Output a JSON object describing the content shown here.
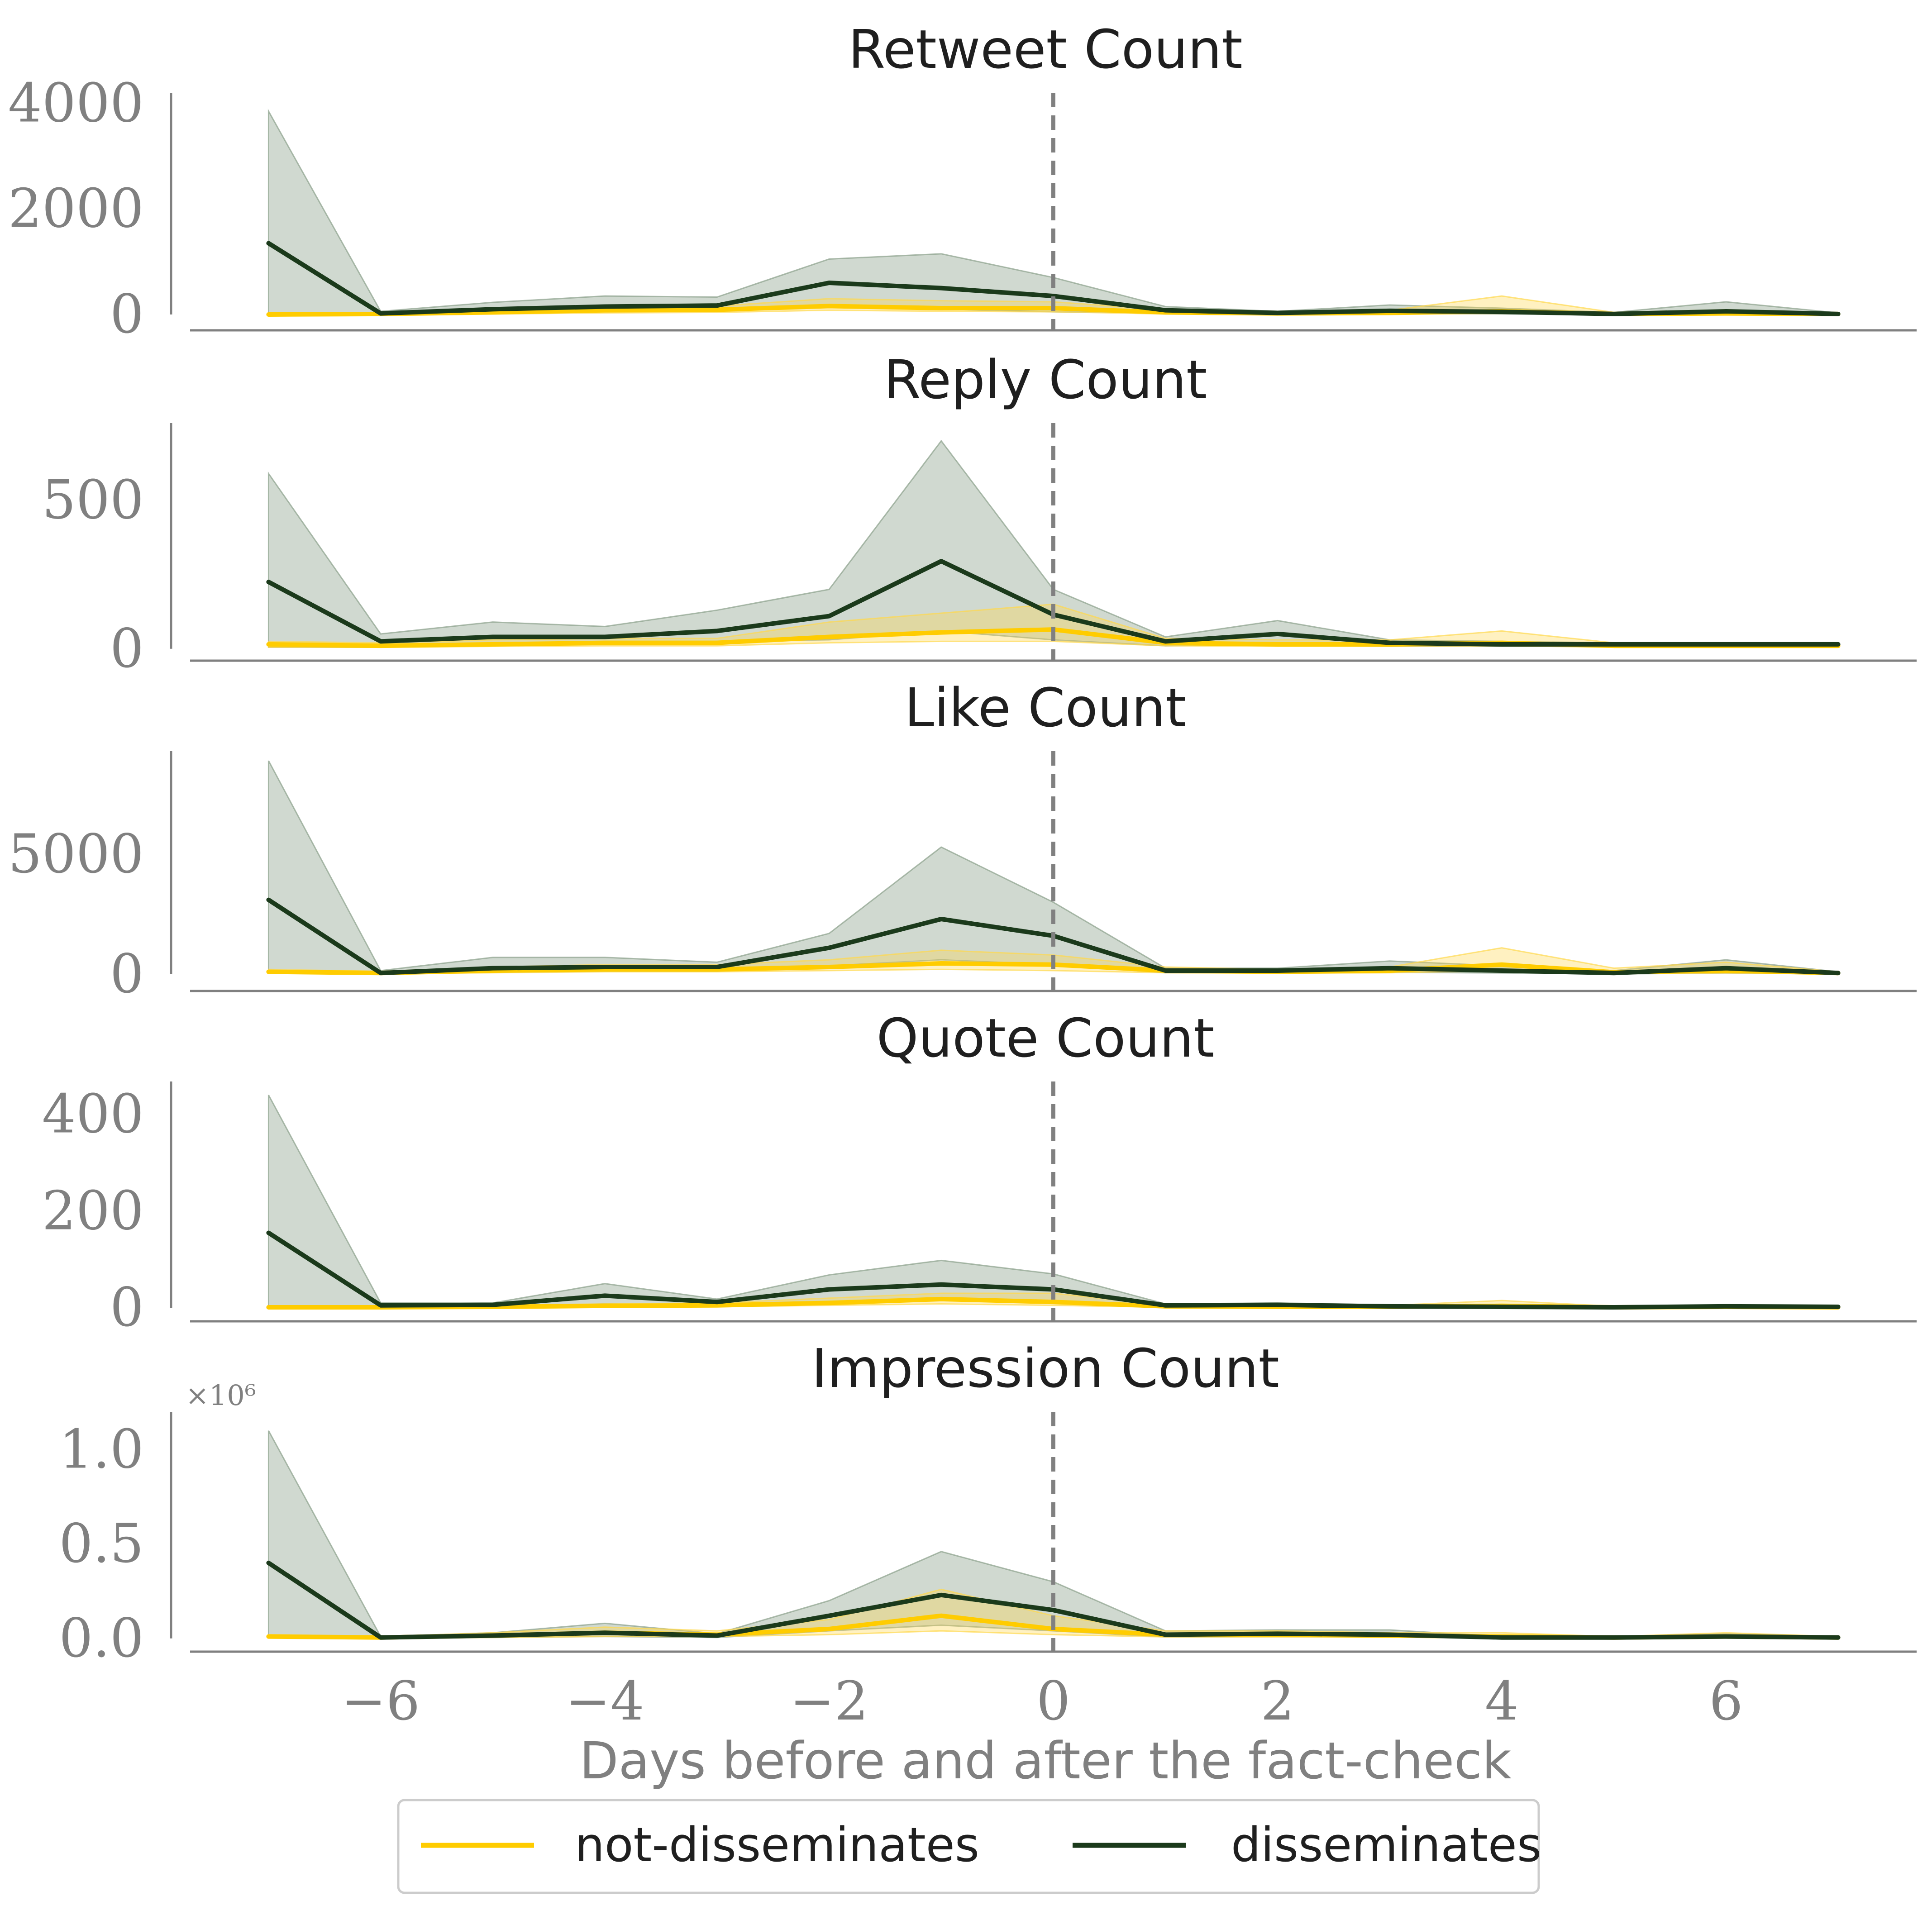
{
  "colors": {
    "not_disseminates": "#ffcc00",
    "disseminates": "#1b3a1b",
    "disseminates_band": "#8a9f8a",
    "not_disseminates_band": "#ffd84d",
    "axis": "#808080",
    "reference_line": "#808080"
  },
  "legend": {
    "items": [
      "not-disseminates",
      "disseminates"
    ],
    "placement": "bottom-center"
  },
  "chart_data": [
    {
      "type": "line",
      "title": "Retweet Count",
      "xlabel": "",
      "ylabel": "",
      "ylim": [
        -300,
        4200
      ],
      "yticks": [
        0,
        2000,
        4000
      ],
      "ytick_labels": [
        "0",
        "2000",
        "4000"
      ],
      "exponent_label": "",
      "x": [
        -7,
        -6,
        -5,
        -4,
        -3,
        -2,
        -1,
        0,
        1,
        2,
        3,
        4,
        5,
        6,
        7
      ],
      "series": [
        {
          "name": "not-disseminates",
          "values": [
            0,
            10,
            40,
            80,
            90,
            160,
            120,
            120,
            40,
            20,
            30,
            60,
            10,
            20,
            10
          ],
          "band_low": [
            0,
            0,
            10,
            30,
            40,
            80,
            60,
            50,
            10,
            5,
            10,
            20,
            0,
            5,
            0
          ],
          "band_high": [
            30,
            40,
            90,
            150,
            160,
            300,
            260,
            240,
            90,
            60,
            80,
            350,
            40,
            90,
            30
          ]
        },
        {
          "name": "disseminates",
          "values": [
            1350,
            20,
            100,
            150,
            170,
            600,
            500,
            350,
            80,
            30,
            70,
            50,
            10,
            60,
            10
          ],
          "band_low": [
            0,
            0,
            30,
            70,
            80,
            150,
            100,
            50,
            30,
            10,
            20,
            10,
            0,
            10,
            0
          ],
          "band_high": [
            3850,
            60,
            230,
            350,
            330,
            1050,
            1150,
            700,
            150,
            60,
            180,
            120,
            40,
            240,
            30
          ]
        }
      ]
    },
    {
      "type": "line",
      "title": "Reply Count",
      "xlabel": "",
      "ylabel": "",
      "ylim": [
        -40,
        760
      ],
      "yticks": [
        0,
        500
      ],
      "ytick_labels": [
        "0",
        "500"
      ],
      "exponent_label": "",
      "x": [
        -7,
        -6,
        -5,
        -4,
        -3,
        -2,
        -1,
        0,
        1,
        2,
        3,
        4,
        5,
        6,
        7
      ],
      "series": [
        {
          "name": "not-disseminates",
          "values": [
            15,
            10,
            15,
            20,
            20,
            40,
            55,
            65,
            20,
            15,
            15,
            20,
            10,
            10,
            10
          ],
          "band_low": [
            5,
            5,
            8,
            10,
            10,
            20,
            25,
            25,
            10,
            8,
            8,
            10,
            5,
            5,
            5
          ],
          "band_high": [
            25,
            20,
            30,
            35,
            35,
            90,
            120,
            150,
            35,
            30,
            30,
            60,
            20,
            20,
            18
          ]
        },
        {
          "name": "disseminates",
          "values": [
            225,
            25,
            40,
            40,
            60,
            110,
            295,
            115,
            25,
            50,
            20,
            15,
            15,
            15,
            15
          ],
          "band_low": [
            5,
            5,
            15,
            15,
            25,
            30,
            60,
            30,
            10,
            15,
            8,
            8,
            8,
            8,
            8
          ],
          "band_high": [
            590,
            50,
            90,
            75,
            130,
            200,
            700,
            200,
            40,
            95,
            30,
            25,
            20,
            20,
            20
          ]
        }
      ]
    },
    {
      "type": "line",
      "title": "Like Count",
      "xlabel": "",
      "ylabel": "",
      "ylim": [
        -700,
        9300
      ],
      "yticks": [
        0,
        5000
      ],
      "ytick_labels": [
        "0",
        "5000"
      ],
      "exponent_label": "",
      "x": [
        -7,
        -6,
        -5,
        -4,
        -3,
        -2,
        -1,
        0,
        1,
        2,
        3,
        4,
        5,
        6,
        7
      ],
      "series": [
        {
          "name": "not-disseminates",
          "values": [
            100,
            50,
            150,
            200,
            200,
            300,
            450,
            400,
            150,
            100,
            150,
            400,
            80,
            150,
            50
          ],
          "band_low": [
            30,
            20,
            60,
            100,
            100,
            150,
            200,
            150,
            60,
            40,
            60,
            150,
            20,
            50,
            20
          ],
          "band_high": [
            200,
            120,
            300,
            400,
            400,
            600,
            1000,
            800,
            300,
            200,
            300,
            1100,
            250,
            500,
            100
          ]
        },
        {
          "name": "disseminates",
          "values": [
            3100,
            50,
            250,
            300,
            300,
            1100,
            2300,
            1600,
            150,
            150,
            250,
            150,
            50,
            250,
            50
          ],
          "band_low": [
            50,
            10,
            80,
            120,
            120,
            350,
            600,
            400,
            60,
            50,
            80,
            50,
            10,
            50,
            10
          ],
          "band_high": [
            8900,
            150,
            700,
            700,
            500,
            1700,
            5300,
            3000,
            250,
            250,
            550,
            350,
            150,
            600,
            100
          ]
        }
      ]
    },
    {
      "type": "line",
      "title": "Quote Count",
      "xlabel": "",
      "ylabel": "",
      "ylim": [
        -28,
        468
      ],
      "yticks": [
        0,
        200,
        400
      ],
      "ytick_labels": [
        "0",
        "200",
        "400"
      ],
      "exponent_label": "",
      "x": [
        -7,
        -6,
        -5,
        -4,
        -3,
        -2,
        -1,
        0,
        1,
        2,
        3,
        4,
        5,
        6,
        7
      ],
      "series": [
        {
          "name": "not-disseminates",
          "values": [
            1,
            1,
            2,
            4,
            5,
            10,
            18,
            12,
            3,
            2,
            2,
            4,
            1,
            2,
            1
          ],
          "band_low": [
            0,
            0,
            1,
            2,
            2,
            5,
            8,
            5,
            1,
            1,
            1,
            2,
            0,
            1,
            0
          ],
          "band_high": [
            3,
            3,
            5,
            8,
            10,
            20,
            30,
            30,
            6,
            5,
            5,
            15,
            3,
            5,
            3
          ]
        },
        {
          "name": "disseminates",
          "values": [
            155,
            5,
            6,
            25,
            12,
            38,
            48,
            38,
            5,
            6,
            3,
            2,
            1,
            3,
            2
          ],
          "band_low": [
            2,
            1,
            2,
            8,
            5,
            12,
            15,
            12,
            2,
            2,
            1,
            1,
            0,
            1,
            0
          ],
          "band_high": [
            440,
            10,
            10,
            50,
            18,
            68,
            98,
            70,
            8,
            10,
            6,
            4,
            3,
            6,
            4
          ]
        }
      ]
    },
    {
      "type": "line",
      "title": "Impression Count",
      "xlabel": "Days before and after the fact-check",
      "ylabel": "",
      "ylim": [
        -0.07,
        1.2
      ],
      "yticks": [
        0.0,
        0.5,
        1.0
      ],
      "ytick_labels": [
        "0.0",
        "0.5",
        "1.0"
      ],
      "exponent_label": "×10⁶",
      "x": [
        -7,
        -6,
        -5,
        -4,
        -3,
        -2,
        -1,
        0,
        1,
        2,
        3,
        4,
        5,
        6,
        7
      ],
      "xticks": [
        -6,
        -4,
        -2,
        0,
        2,
        4,
        6
      ],
      "xtick_labels": [
        "−6",
        "−4",
        "−2",
        "0",
        "2",
        "4",
        "6"
      ],
      "series": [
        {
          "name": "not-disseminates",
          "values": [
            0.01,
            0.005,
            0.015,
            0.03,
            0.02,
            0.05,
            0.12,
            0.05,
            0.02,
            0.02,
            0.015,
            0.01,
            0.005,
            0.01,
            0.005
          ],
          "band_low": [
            0.003,
            0.002,
            0.005,
            0.01,
            0.01,
            0.02,
            0.04,
            0.02,
            0.008,
            0.008,
            0.006,
            0.004,
            0.002,
            0.004,
            0.002
          ],
          "band_high": [
            0.02,
            0.01,
            0.03,
            0.06,
            0.04,
            0.1,
            0.26,
            0.12,
            0.04,
            0.04,
            0.03,
            0.03,
            0.01,
            0.03,
            0.01
          ]
        },
        {
          "name": "disseminates",
          "values": [
            0.4,
            0.005,
            0.015,
            0.03,
            0.015,
            0.12,
            0.23,
            0.15,
            0.02,
            0.025,
            0.02,
            0.005,
            0.005,
            0.01,
            0.005
          ],
          "band_low": [
            0.01,
            0.002,
            0.005,
            0.01,
            0.005,
            0.04,
            0.07,
            0.04,
            0.008,
            0.01,
            0.008,
            0.002,
            0.002,
            0.004,
            0.002
          ],
          "band_high": [
            1.1,
            0.01,
            0.03,
            0.08,
            0.025,
            0.2,
            0.46,
            0.3,
            0.04,
            0.045,
            0.045,
            0.01,
            0.01,
            0.025,
            0.01
          ]
        }
      ]
    }
  ]
}
